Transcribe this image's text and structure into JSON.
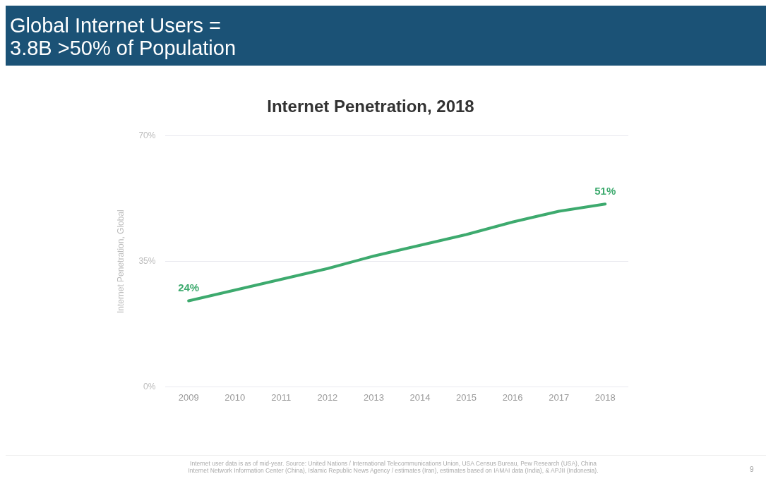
{
  "chart_data": {
    "type": "line",
    "title": "Global Internet Users = 3.8B >50% of Population",
    "subtitle": "Internet Penetration, 2018",
    "ylabel": "Internet Penetration, Global",
    "categories": [
      "2009",
      "2010",
      "2011",
      "2012",
      "2013",
      "2014",
      "2015",
      "2016",
      "2017",
      "2018"
    ],
    "series": [
      {
        "color": "#3daa6e",
        "values": [
          24,
          27,
          30,
          33,
          36.5,
          39.5,
          42.5,
          46,
          49,
          51
        ],
        "value_labels": [
          "24%",
          null,
          null,
          null,
          null,
          null,
          null,
          null,
          null,
          "51%"
        ]
      }
    ],
    "ylim": [
      0,
      70
    ],
    "yticks": [
      {
        "value": 0,
        "label": "0%"
      },
      {
        "value": 35,
        "label": "35%"
      },
      {
        "value": 70,
        "label": "70%"
      }
    ],
    "grid": "y",
    "legend": false,
    "marker": "none",
    "line_style": "solid",
    "annotations": [
      "Internet user data is as of mid-year.  Source: United Nations / International Telecommunications Union, USA Census Bureau, Pew Research (USA), China Internet Network Information Center (China), Islamic Republic News Agency / estimates (Iran), estimates based on IAMAI data (India), & APJII (Indonesia).",
      "9"
    ]
  }
}
